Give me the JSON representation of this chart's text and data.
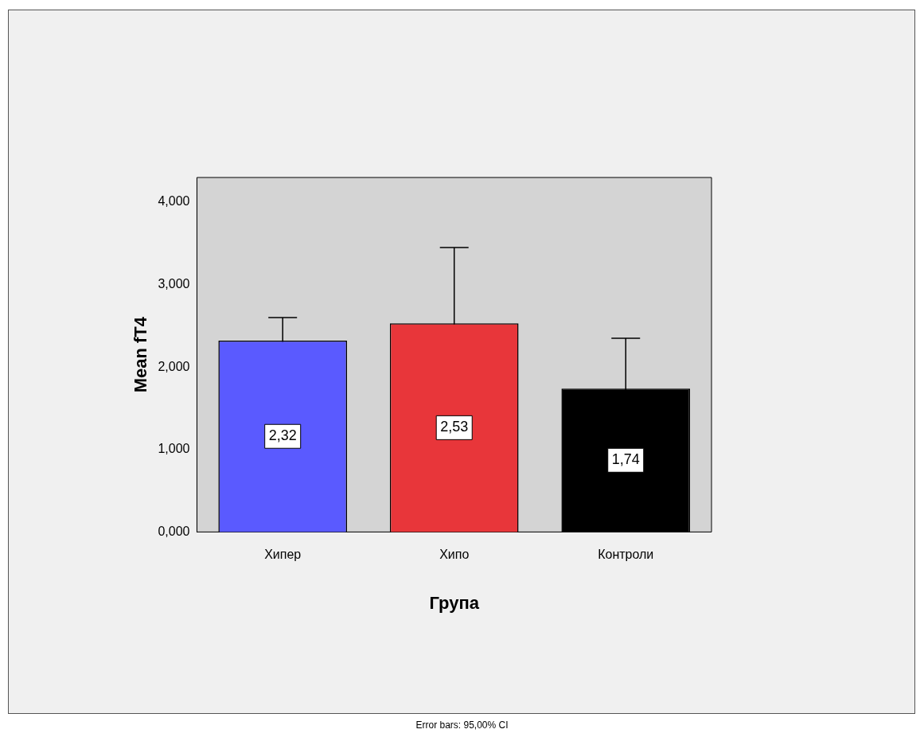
{
  "chart_data": {
    "type": "bar",
    "xlabel": "Група",
    "ylabel": "Mean fT4",
    "categories": [
      "Хипер",
      "Хипо",
      "Контроли"
    ],
    "values": [
      2.32,
      2.53,
      1.74
    ],
    "colors": [
      "#5a5aff",
      "#e8363a",
      "#000000"
    ],
    "errors": [
      0.28,
      0.92,
      0.61
    ],
    "value_labels": [
      "2,32",
      "2,53",
      "1,74"
    ],
    "ylim": [
      0,
      4.3
    ],
    "yticks": [
      {
        "value": 0,
        "label": "0,000"
      },
      {
        "value": 1,
        "label": "1,000"
      },
      {
        "value": 2,
        "label": "2,000"
      },
      {
        "value": 3,
        "label": "3,000"
      },
      {
        "value": 4,
        "label": "4,000"
      }
    ],
    "grid": false,
    "legend": false,
    "annotations": [
      "Error bars: 95,00% CI"
    ]
  }
}
